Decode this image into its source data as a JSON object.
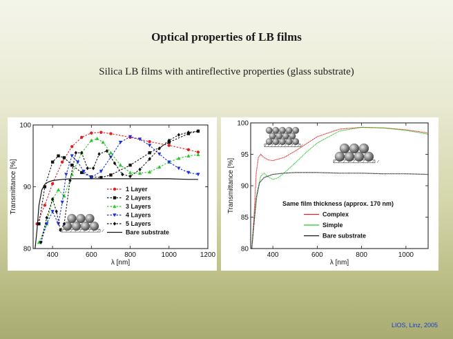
{
  "slide": {
    "title": "Optical properties of LB films",
    "subtitle": "Silica LB films with antireflective properties (glass substrate)",
    "credit": "LIOS, Linz, 2005"
  },
  "chart_data": [
    {
      "type": "line",
      "xlabel": "λ [nm]",
      "ylabel": "Transmittance [%]",
      "xlim": [
        300,
        1200
      ],
      "ylim": [
        80,
        100
      ],
      "xticks": [
        400,
        600,
        800,
        1000,
        1200
      ],
      "yticks": [
        80,
        90,
        100
      ],
      "legend_position": "bottom-right",
      "series": [
        {
          "name": "1 Layer",
          "color": "#e02020",
          "marker": "circle",
          "x": [
            320,
            360,
            400,
            450,
            500,
            550,
            600,
            650,
            700,
            800,
            900,
            1000,
            1100,
            1150
          ],
          "y": [
            84,
            87,
            90.5,
            94,
            96.5,
            98,
            98.7,
            98.8,
            98.6,
            98,
            97.3,
            96.7,
            96,
            95.6
          ]
        },
        {
          "name": "2 Layers",
          "color": "#111111",
          "marker": "square",
          "x": [
            330,
            360,
            400,
            430,
            460,
            500,
            550,
            600,
            650,
            700,
            800,
            900,
            1000,
            1100,
            1150
          ],
          "y": [
            84,
            90,
            94,
            95,
            94.7,
            93.5,
            92.3,
            91.6,
            91.5,
            91.9,
            93.5,
            95.5,
            97.2,
            98.6,
            99
          ]
        },
        {
          "name": "3 Layers",
          "color": "#28c828",
          "marker": "triangle-up",
          "x": [
            330,
            370,
            400,
            430,
            460,
            500,
            550,
            600,
            630,
            660,
            700,
            750,
            800,
            850,
            900,
            950,
            1000,
            1050,
            1100,
            1150
          ],
          "y": [
            81,
            84,
            88,
            89.5,
            88.5,
            92,
            95.5,
            97.5,
            97.8,
            97.2,
            95.5,
            93.5,
            92.3,
            92.2,
            92.4,
            93.2,
            94,
            94.6,
            95,
            95.2
          ]
        },
        {
          "name": "4 Layers",
          "color": "#1a2ee0",
          "marker": "triangle-down",
          "x": [
            340,
            370,
            400,
            430,
            450,
            470,
            500,
            530,
            560,
            600,
            650,
            700,
            750,
            800,
            850,
            900,
            950,
            1000,
            1050,
            1100,
            1150
          ],
          "y": [
            81,
            84,
            86,
            84,
            87.5,
            92,
            95,
            94,
            92.5,
            91.5,
            92.5,
            94.8,
            97.2,
            98.1,
            97.7,
            96.7,
            95.3,
            94,
            93,
            92.3,
            92
          ]
        },
        {
          "name": "5 Layers",
          "color": "#111111",
          "marker": "diamond",
          "x": [
            340,
            370,
            400,
            420,
            440,
            460,
            490,
            520,
            550,
            580,
            610,
            640,
            680,
            720,
            760,
            800,
            850,
            900,
            950,
            1000,
            1050,
            1100,
            1150
          ],
          "y": [
            81,
            85,
            88,
            86,
            83,
            84,
            91,
            95.5,
            95.5,
            93,
            93,
            95.3,
            95.8,
            93.8,
            92,
            91.7,
            92.8,
            94.5,
            96.2,
            97.5,
            98.4,
            98.8,
            99
          ]
        },
        {
          "name": "Bare substrate",
          "color": "#111111",
          "marker": "none",
          "x": [
            310,
            320,
            330,
            345,
            360,
            380,
            400,
            450,
            500,
            600,
            700,
            800,
            900,
            1000,
            1100,
            1150
          ],
          "y": [
            80,
            83,
            87,
            89.5,
            90.4,
            90.8,
            91,
            91.2,
            91.3,
            91.3,
            91.3,
            91.3,
            91.3,
            91.3,
            91.2,
            91.2
          ]
        }
      ]
    },
    {
      "type": "line",
      "xlabel": "λ [nm]",
      "ylabel": "Transmittance [%]",
      "xlim": [
        300,
        1100
      ],
      "ylim": [
        80,
        100
      ],
      "xticks": [
        400,
        600,
        800,
        1000
      ],
      "yticks": [
        80,
        85,
        90,
        95,
        100
      ],
      "legend_position": "bottom-right",
      "legend_title": "Same film thickness (approx. 170 nm)",
      "series": [
        {
          "name": "Complex",
          "color": "#e02020",
          "x": [
            305,
            315,
            325,
            335,
            345,
            360,
            380,
            400,
            450,
            500,
            600,
            700,
            800,
            900,
            1000,
            1100
          ],
          "y": [
            80,
            85,
            92,
            94.5,
            95,
            94.5,
            94.1,
            94,
            94.5,
            95.5,
            97.8,
            99,
            99.3,
            99.2,
            98.9,
            98.4
          ]
        },
        {
          "name": "Simple",
          "color": "#28c828",
          "x": [
            305,
            315,
            330,
            345,
            360,
            380,
            400,
            420,
            450,
            500,
            550,
            600,
            700,
            800,
            900,
            1000,
            1100
          ],
          "y": [
            80,
            84,
            89,
            91.5,
            92,
            91.4,
            91,
            91.2,
            92,
            93.6,
            95.3,
            96.8,
            98.7,
            99.3,
            99.2,
            98.8,
            98.2
          ]
        },
        {
          "name": "Bare substrate",
          "color": "#111111",
          "x": [
            305,
            315,
            325,
            340,
            360,
            400,
            450,
            500,
            600,
            700,
            800,
            900,
            1000,
            1100
          ],
          "y": [
            80,
            84,
            88,
            90.5,
            91.3,
            91.8,
            92,
            92.1,
            92.1,
            92,
            92,
            91.9,
            91.9,
            91.8
          ]
        }
      ]
    }
  ]
}
